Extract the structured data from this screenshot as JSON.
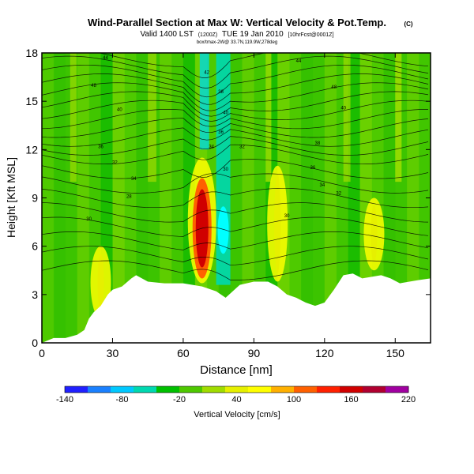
{
  "header": {
    "title": "Wind-Parallel Section at Max W: Vertical Velocity & Pot.Temp.",
    "title_mark": "(C)",
    "valid_line": "Valid 1400 LST",
    "valid_time": "(1200Z)",
    "valid_date": "TUE 19 Jan 2010",
    "run_info": "[10hrFcst@0001Z]",
    "source_line": "box/tmax-2W@ 33.7N,119.9W,278deg"
  },
  "chart_data": {
    "type": "heatmap",
    "title": "Wind-Parallel Section at Max W: Vertical Velocity & Pot.Temp.",
    "xlabel": "Distance [nm]",
    "ylabel": "Height [Kft MSL]",
    "xlim": [
      0,
      165
    ],
    "ylim": [
      0,
      18
    ],
    "xticks": [
      0,
      30,
      60,
      90,
      120,
      150
    ],
    "yticks": [
      0,
      3,
      6,
      9,
      12,
      15,
      18
    ],
    "colorbar": {
      "label": "Vertical Velocity [cm/s]",
      "range": [
        -140,
        220
      ],
      "tick_labels": [
        "-140",
        "-80",
        "-20",
        "40",
        "100",
        "160",
        "220"
      ],
      "colors": [
        "#2020ff",
        "#1a80ff",
        "#00c8ff",
        "#00d8b0",
        "#00c000",
        "#4ec800",
        "#a0dc00",
        "#e6f000",
        "#ffff00",
        "#ffb000",
        "#ff6000",
        "#ff2000",
        "#d00000",
        "#b00030",
        "#a000a0"
      ]
    },
    "terrain_profile": {
      "x": [
        0,
        5,
        10,
        15,
        18,
        20,
        22,
        25,
        28,
        30,
        34,
        38,
        40,
        45,
        52,
        60,
        68,
        74,
        78,
        84,
        90,
        96,
        100,
        104,
        108,
        112,
        116,
        120,
        124,
        128,
        132,
        136,
        140,
        144,
        148,
        152,
        156,
        160,
        165
      ],
      "height_kft": [
        0,
        0.3,
        0.3,
        0.5,
        0.8,
        1.5,
        1.9,
        2.3,
        3.0,
        3.3,
        3.5,
        4.0,
        4.2,
        3.8,
        3.7,
        3.7,
        3.5,
        3.2,
        2.8,
        3.6,
        3.8,
        3.8,
        3.5,
        3.0,
        2.8,
        2.5,
        2.3,
        2.5,
        3.3,
        4.2,
        4.3,
        4.0,
        4.1,
        4.2,
        4.0,
        3.7,
        3.8,
        3.9,
        4.0
      ]
    },
    "velocity_features": [
      {
        "kind": "updraft",
        "x_nm": 68,
        "ztop_kft": 11.5,
        "zbot_kft": 3.7,
        "max_cm_s": 180
      },
      {
        "kind": "downdraft",
        "x_nm": 77,
        "ztop_kft": 18,
        "zbot_kft": 3.6,
        "min_cm_s": -90
      },
      {
        "kind": "updraft",
        "x_nm": 100,
        "ztop_kft": 11,
        "zbot_kft": 3.8,
        "max_cm_s": 80
      },
      {
        "kind": "updraft",
        "x_nm": 25,
        "ztop_kft": 6,
        "zbot_kft": 1.5,
        "max_cm_s": 60
      },
      {
        "kind": "updraft",
        "x_nm": 141,
        "ztop_kft": 9,
        "zbot_kft": 4.5,
        "max_cm_s": 70
      }
    ],
    "isentrope_labels": [
      {
        "x": 27,
        "z": 17.7,
        "text": "44"
      },
      {
        "x": 22,
        "z": 16.0,
        "text": "48"
      },
      {
        "x": 33,
        "z": 14.5,
        "text": "40"
      },
      {
        "x": 25,
        "z": 12.2,
        "text": "36"
      },
      {
        "x": 31,
        "z": 11.2,
        "text": "32"
      },
      {
        "x": 39,
        "z": 10.2,
        "text": "34"
      },
      {
        "x": 37,
        "z": 9.1,
        "text": "28"
      },
      {
        "x": 20,
        "z": 7.7,
        "text": "30"
      },
      {
        "x": 70,
        "z": 16.8,
        "text": "42"
      },
      {
        "x": 76,
        "z": 15.6,
        "text": "38"
      },
      {
        "x": 78,
        "z": 14.3,
        "text": "40"
      },
      {
        "x": 76,
        "z": 13.1,
        "text": "36"
      },
      {
        "x": 72,
        "z": 12.2,
        "text": "34"
      },
      {
        "x": 85,
        "z": 12.2,
        "text": "32"
      },
      {
        "x": 78,
        "z": 10.8,
        "text": "30"
      },
      {
        "x": 109,
        "z": 17.5,
        "text": "44"
      },
      {
        "x": 124,
        "z": 15.9,
        "text": "48"
      },
      {
        "x": 128,
        "z": 14.6,
        "text": "40"
      },
      {
        "x": 117,
        "z": 12.4,
        "text": "38"
      },
      {
        "x": 115,
        "z": 10.9,
        "text": "36"
      },
      {
        "x": 119,
        "z": 9.8,
        "text": "34"
      },
      {
        "x": 126,
        "z": 9.3,
        "text": "32"
      },
      {
        "x": 104,
        "z": 7.9,
        "text": "30"
      }
    ]
  }
}
